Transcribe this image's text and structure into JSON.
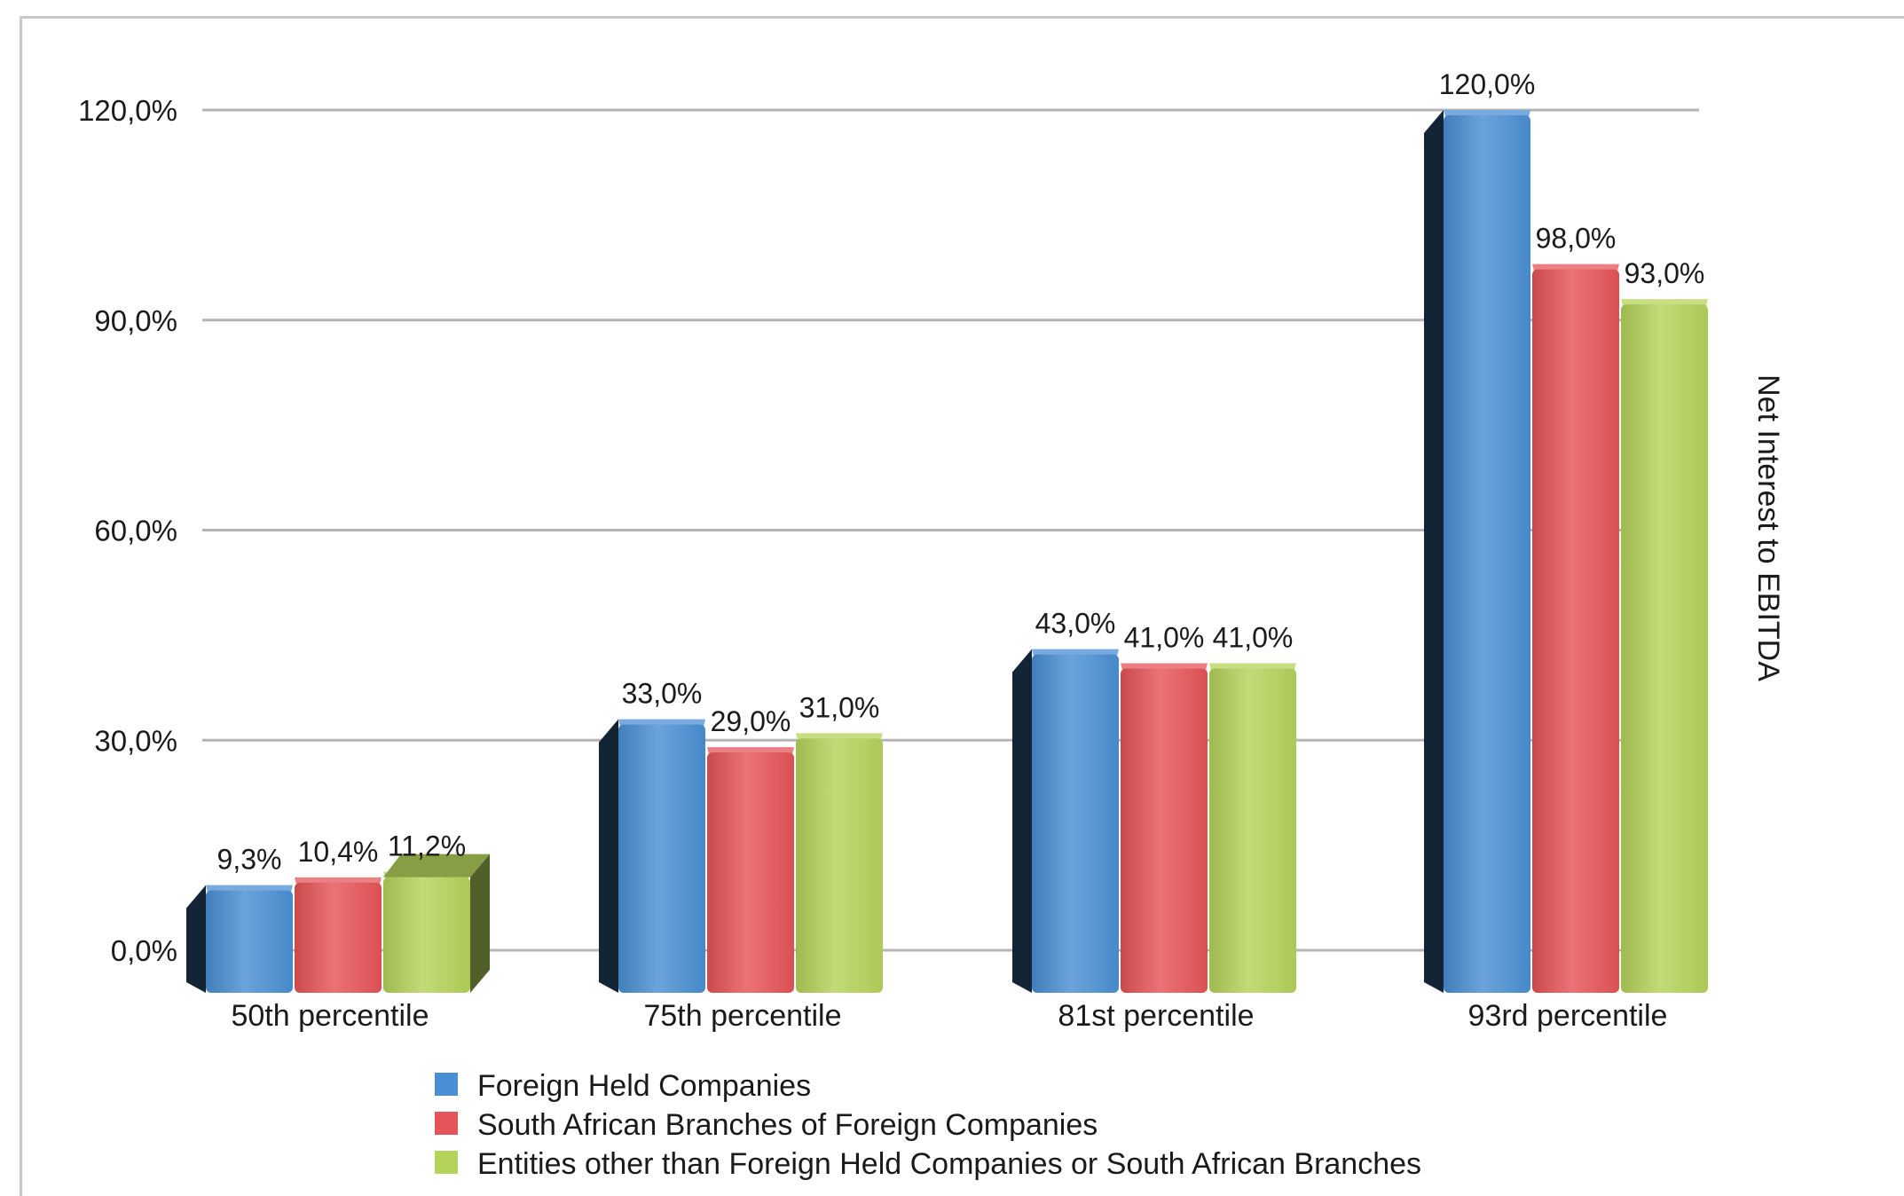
{
  "chart_data": {
    "type": "bar",
    "categories": [
      "50th percentile",
      "75th percentile",
      "81st percentile",
      "93rd percentile"
    ],
    "series": [
      {
        "name": "Foreign Held Companies",
        "values": [
          9.3,
          33.0,
          43.0,
          120.0
        ],
        "labels": [
          "9,3%",
          "33,0%",
          "43,0%",
          "120,0%"
        ],
        "color": "#4a8fd4"
      },
      {
        "name": "South African Branches of Foreign Companies",
        "values": [
          10.4,
          29.0,
          41.0,
          98.0
        ],
        "labels": [
          "10,4%",
          "29,0%",
          "41,0%",
          "98,0%"
        ],
        "color": "#e55458"
      },
      {
        "name": "Entities other than Foreign Held Companies or South African Branches",
        "values": [
          11.2,
          31.0,
          41.0,
          93.0
        ],
        "labels": [
          "11,2%",
          "31,0%",
          "41,0%",
          "93,0%"
        ],
        "color": "#b5d35a"
      }
    ],
    "y_ticks": [
      {
        "value": 0,
        "label": "0,0%"
      },
      {
        "value": 30,
        "label": "30,0%"
      },
      {
        "value": 60,
        "label": "60,0%"
      },
      {
        "value": 90,
        "label": "90,0%"
      },
      {
        "value": 120,
        "label": "120,0%"
      }
    ],
    "ylim": [
      0,
      120
    ],
    "ylabel": "Net Interest to EBITDA",
    "xlabel": "",
    "grid": true,
    "legend_position": "bottom",
    "style": "3d-columns"
  }
}
